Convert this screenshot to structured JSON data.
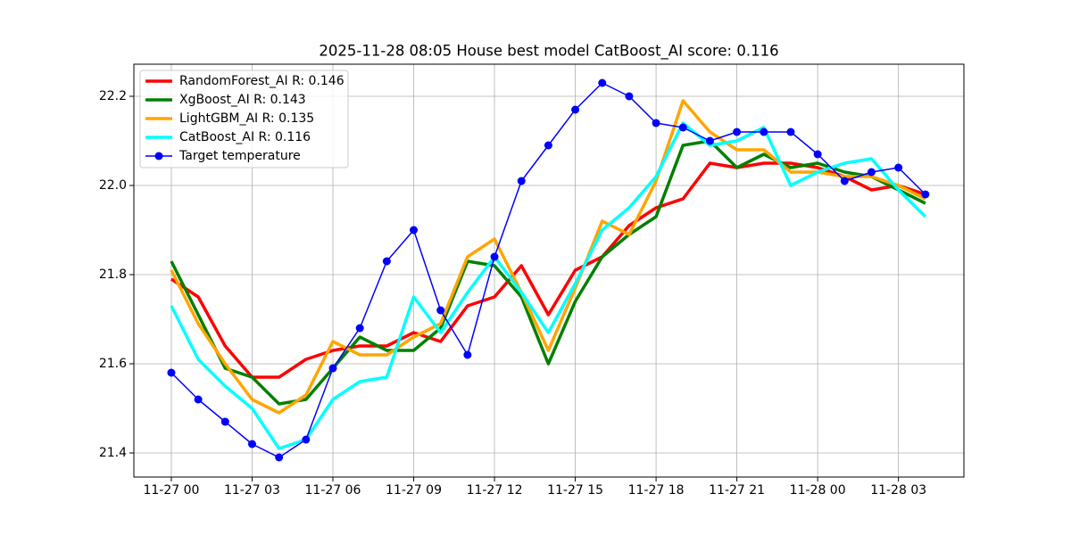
{
  "chart_data": {
    "type": "line",
    "title": "2025-11-28 08:05 House best model CatBoost_AI score: 0.116",
    "x": [
      0,
      1,
      2,
      3,
      4,
      5,
      6,
      7,
      8,
      9,
      10,
      11,
      12,
      13,
      14,
      15,
      16,
      17,
      18,
      19,
      20,
      21,
      22,
      23,
      24,
      25,
      26,
      27,
      28
    ],
    "xlim": [
      -1.39,
      29.43
    ],
    "xticks": [
      {
        "value": 0,
        "label": "11-27 00"
      },
      {
        "value": 3,
        "label": "11-27 03"
      },
      {
        "value": 6,
        "label": "11-27 06"
      },
      {
        "value": 9,
        "label": "11-27 09"
      },
      {
        "value": 12,
        "label": "11-27 12"
      },
      {
        "value": 15,
        "label": "11-27 15"
      },
      {
        "value": 18,
        "label": "11-27 18"
      },
      {
        "value": 21,
        "label": "11-27 21"
      },
      {
        "value": 24,
        "label": "11-28 00"
      },
      {
        "value": 27,
        "label": "11-28 03"
      }
    ],
    "ylim": [
      21.346,
      22.272
    ],
    "yticks": [
      21.4,
      21.6,
      21.8,
      {
        "value": 22,
        "label": "22.0"
      },
      22.2
    ],
    "grid": true,
    "legend": "upper left",
    "series": [
      {
        "name": "RandomForest_AI R: 0.146",
        "color": "#ff0000",
        "linewidth": 3.5,
        "marker": false,
        "values": [
          21.79,
          21.75,
          21.64,
          21.57,
          21.57,
          21.61,
          21.63,
          21.64,
          21.64,
          21.67,
          21.65,
          21.73,
          21.75,
          21.82,
          21.71,
          21.81,
          21.84,
          21.91,
          21.95,
          21.97,
          22.05,
          22.04,
          22.05,
          22.05,
          22.04,
          22.02,
          21.99,
          22.0,
          21.98
        ]
      },
      {
        "name": "XgBoost_AI R: 0.143",
        "color": "#008000",
        "linewidth": 3.5,
        "marker": false,
        "values": [
          21.83,
          21.71,
          21.59,
          21.57,
          21.51,
          21.52,
          21.59,
          21.66,
          21.63,
          21.63,
          21.68,
          21.83,
          21.82,
          21.75,
          21.6,
          21.74,
          21.84,
          21.89,
          21.93,
          22.09,
          22.1,
          22.04,
          22.07,
          22.04,
          22.05,
          22.03,
          22.02,
          21.99,
          21.96
        ]
      },
      {
        "name": "LightGBM_AI R: 0.135",
        "color": "#ffa500",
        "linewidth": 3.5,
        "marker": false,
        "values": [
          21.81,
          21.69,
          21.6,
          21.52,
          21.49,
          21.53,
          21.65,
          21.62,
          21.62,
          21.66,
          21.69,
          21.84,
          21.88,
          21.76,
          21.63,
          21.77,
          21.92,
          21.89,
          22.01,
          22.19,
          22.12,
          22.08,
          22.08,
          22.03,
          22.03,
          22.02,
          22.02,
          22.0,
          21.97
        ]
      },
      {
        "name": "CatBoost_AI R: 0.116",
        "color": "#00ffff",
        "linewidth": 3.5,
        "marker": false,
        "values": [
          21.73,
          21.61,
          21.55,
          21.5,
          21.41,
          21.43,
          21.52,
          21.56,
          21.57,
          21.75,
          21.67,
          21.76,
          21.84,
          21.76,
          21.67,
          21.78,
          21.9,
          21.95,
          22.02,
          22.14,
          22.09,
          22.1,
          22.13,
          22.0,
          22.03,
          22.05,
          22.06,
          21.99,
          21.93
        ]
      },
      {
        "name": "Target temperature",
        "color": "#0000ff",
        "linewidth": 1.5,
        "marker": true,
        "values": [
          21.58,
          21.52,
          21.47,
          21.42,
          21.39,
          21.43,
          21.59,
          21.68,
          21.83,
          21.9,
          21.72,
          21.62,
          21.84,
          22.01,
          22.09,
          22.17,
          22.23,
          22.2,
          22.14,
          22.13,
          22.1,
          22.12,
          22.12,
          22.12,
          22.07,
          22.01,
          22.03,
          22.04,
          21.98
        ]
      }
    ]
  }
}
